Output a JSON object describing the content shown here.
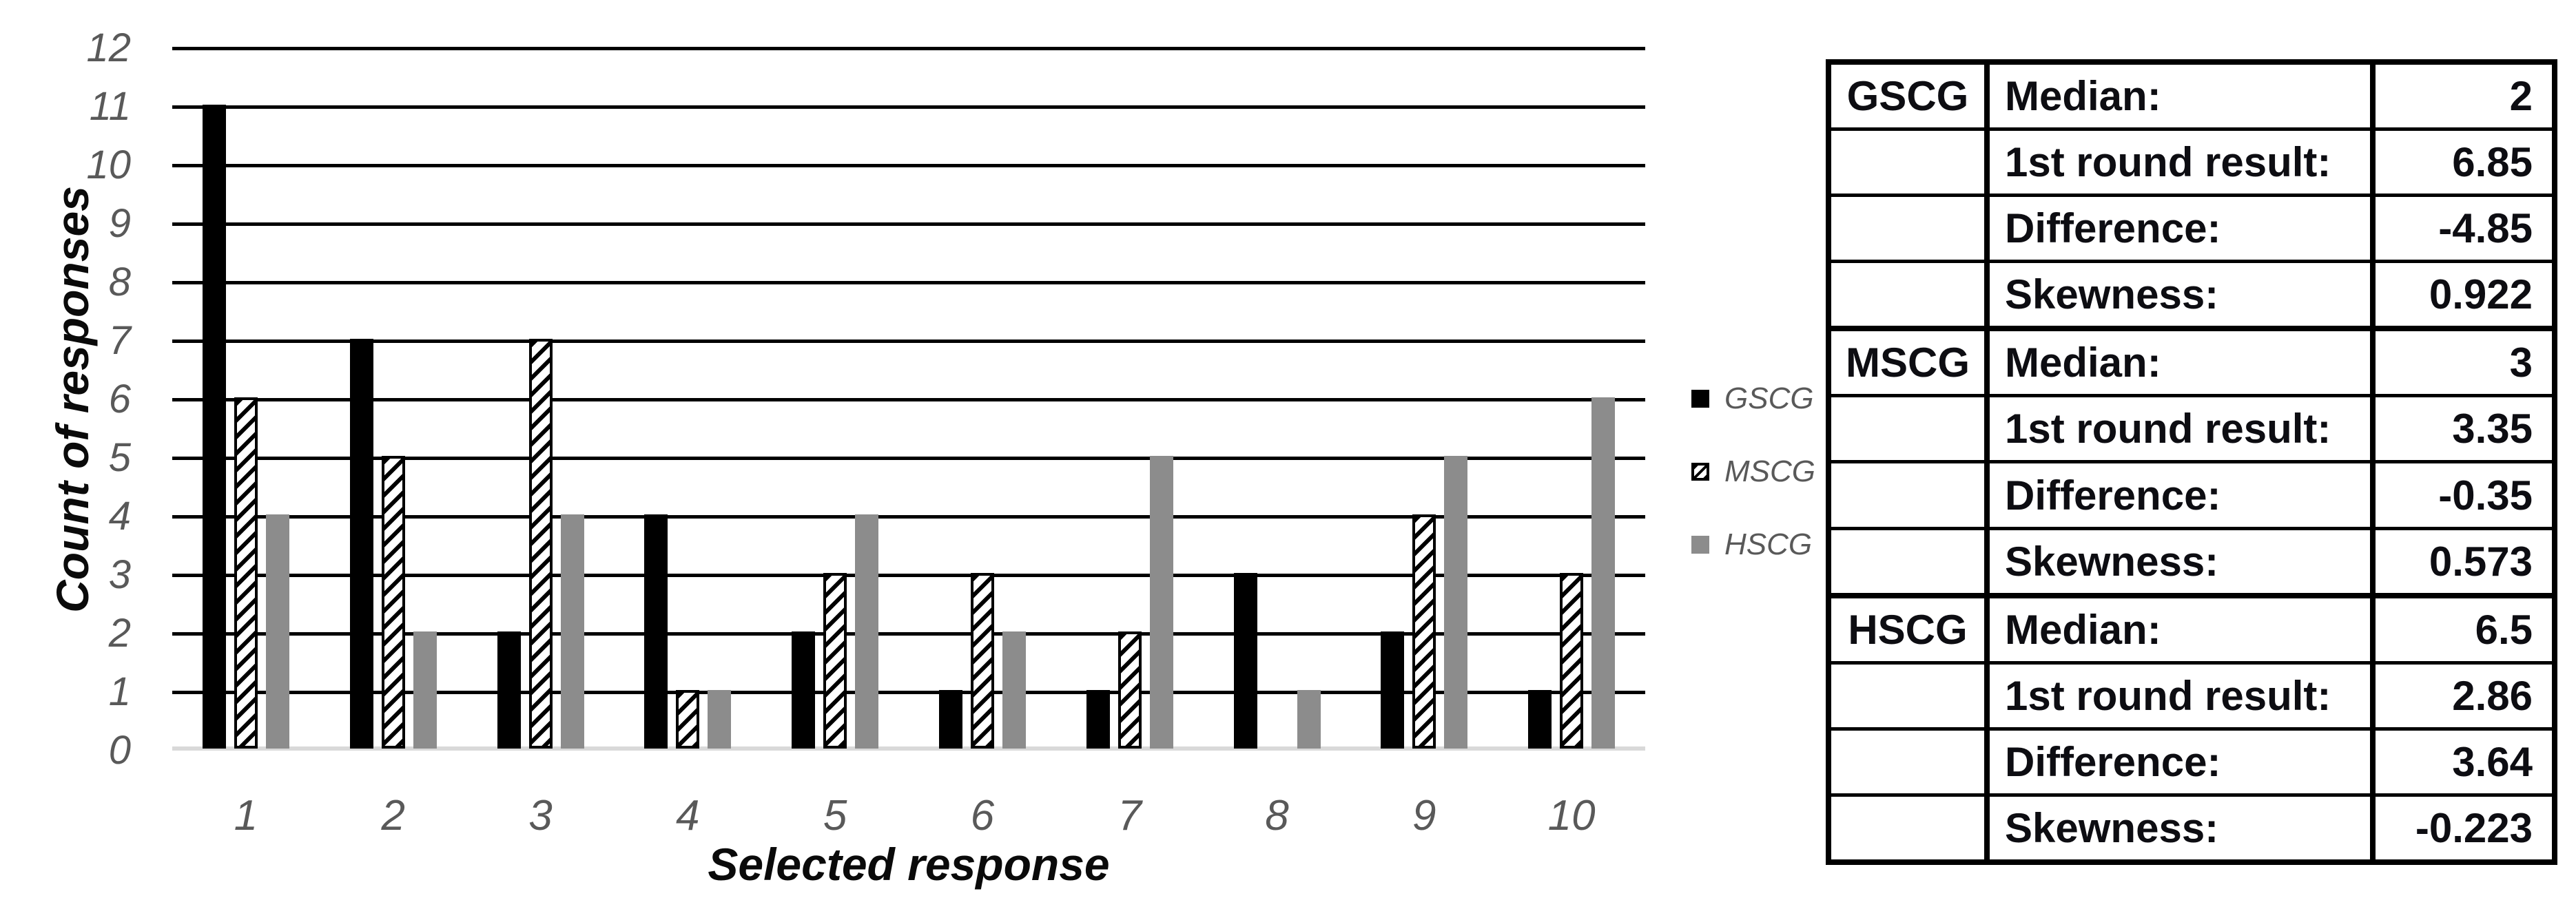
{
  "chart_data": {
    "type": "bar",
    "title": "",
    "xlabel": "Selected response",
    "ylabel": "Count of responses",
    "categories": [
      "1",
      "2",
      "3",
      "4",
      "5",
      "6",
      "7",
      "8",
      "9",
      "10"
    ],
    "series": [
      {
        "name": "GSCG",
        "style": "solid-black",
        "values": [
          11,
          7,
          2,
          4,
          2,
          1,
          1,
          3,
          2,
          1
        ]
      },
      {
        "name": "MSCG",
        "style": "diagonal-hatch",
        "values": [
          6,
          5,
          7,
          1,
          3,
          3,
          2,
          0,
          4,
          3
        ]
      },
      {
        "name": "HSCG",
        "style": "solid-gray",
        "values": [
          4,
          2,
          4,
          1,
          4,
          2,
          5,
          1,
          5,
          6
        ]
      }
    ],
    "ylim": [
      0,
      12
    ],
    "yticks": [
      0,
      1,
      2,
      3,
      4,
      5,
      6,
      7,
      8,
      9,
      10,
      11,
      12
    ],
    "grid": true,
    "legend_position": "right"
  },
  "legend": {
    "items": [
      {
        "label": "GSCG",
        "swatch": "solid-black"
      },
      {
        "label": "MSCG",
        "swatch": "diagonal-hatch"
      },
      {
        "label": "HSCG",
        "swatch": "solid-gray"
      }
    ]
  },
  "table": {
    "groups": [
      {
        "name": "GSCG",
        "rows": [
          {
            "label": "Median:",
            "value": "2"
          },
          {
            "label": "1st round result:",
            "value": "6.85"
          },
          {
            "label": "Difference:",
            "value": "-4.85"
          },
          {
            "label": "Skewness:",
            "value": "0.922"
          }
        ]
      },
      {
        "name": "MSCG",
        "rows": [
          {
            "label": "Median:",
            "value": "3"
          },
          {
            "label": "1st round result:",
            "value": "3.35"
          },
          {
            "label": "Difference:",
            "value": "-0.35"
          },
          {
            "label": "Skewness:",
            "value": "0.573"
          }
        ]
      },
      {
        "name": "HSCG",
        "rows": [
          {
            "label": "Median:",
            "value": "6.5"
          },
          {
            "label": "1st round result:",
            "value": "2.86"
          },
          {
            "label": "Difference:",
            "value": "3.64"
          },
          {
            "label": "Skewness:",
            "value": "-0.223"
          }
        ]
      }
    ]
  },
  "colors": {
    "gridline": "#000000",
    "axis_line": "#d9d9d9",
    "tick_text": "#595959",
    "title_text": "#0a0a0a",
    "bar_black": "#000000",
    "bar_gray": "#8c8c8c",
    "table_text": "#0d0d12"
  }
}
